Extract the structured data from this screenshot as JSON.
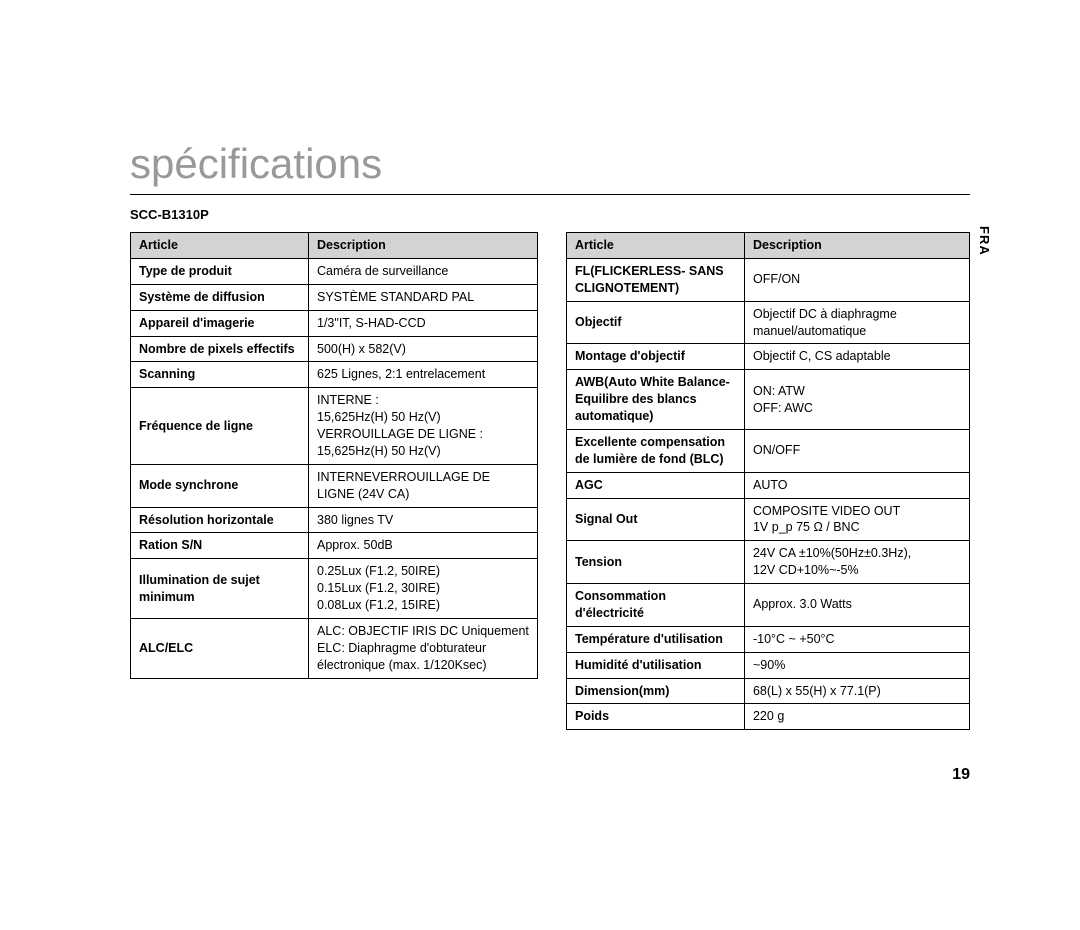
{
  "title": "spécifications",
  "model": "SCC-B1310P",
  "side_tab": "FRA",
  "page_number": "19",
  "headers": {
    "col1": "Article",
    "col2": "Description"
  },
  "left_table": [
    {
      "article": "Type de produit",
      "desc": "Caméra de surveillance"
    },
    {
      "article": "Système de diffusion",
      "desc": "SYSTÈME STANDARD PAL"
    },
    {
      "article": "Appareil d'imagerie",
      "desc": "1/3\"IT, S-HAD-CCD"
    },
    {
      "article": "Nombre de pixels effectifs",
      "desc": "500(H) x 582(V)"
    },
    {
      "article": "Scanning",
      "desc": "625 Lignes, 2:1 entrelacement"
    },
    {
      "article": "Fréquence de ligne",
      "desc": "INTERNE :\n15,625Hz(H) 50 Hz(V)\nVERROUILLAGE DE LIGNE :\n15,625Hz(H) 50 Hz(V)"
    },
    {
      "article": "Mode synchrone",
      "desc": "INTERNEVERROUILLAGE DE LIGNE (24V CA)"
    },
    {
      "article": "Résolution horizontale",
      "desc": "380 lignes TV"
    },
    {
      "article": "Ration S/N",
      "desc": "Approx. 50dB"
    },
    {
      "article": "Illumination de sujet minimum",
      "desc": "0.25Lux (F1.2, 50IRE)\n0.15Lux (F1.2, 30IRE)\n0.08Lux (F1.2, 15IRE)"
    },
    {
      "article": "ALC/ELC",
      "desc": "ALC: OBJECTIF IRIS DC Uniquement\nELC: Diaphragme d'obturateur\nélectronique (max. 1/120Ksec)"
    }
  ],
  "right_table": [
    {
      "article": "FL(FLICKERLESS- SANS CLIGNOTEMENT)",
      "desc": "OFF/ON"
    },
    {
      "article": "Objectif",
      "desc": "Objectif DC à diaphragme manuel/automatique"
    },
    {
      "article": "Montage d'objectif",
      "desc": "Objectif C, CS adaptable"
    },
    {
      "article": "AWB(Auto White Balance- Equilibre des blancs automatique)",
      "desc": "ON: ATW\nOFF: AWC"
    },
    {
      "article": "Excellente compensation de lumière de fond (BLC)",
      "desc": "ON/OFF"
    },
    {
      "article": "AGC",
      "desc": "AUTO"
    },
    {
      "article": "Signal Out",
      "desc": "COMPOSITE VIDEO OUT\n1V p_p 75 Ω / BNC"
    },
    {
      "article": "Tension",
      "desc": "24V CA ±10%(50Hz±0.3Hz),\n12V CD+10%~-5%"
    },
    {
      "article": "Consommation d'électricité",
      "desc": "Approx. 3.0 Watts"
    },
    {
      "article": "Température d'utilisation",
      "desc": "-10°C ~ +50°C"
    },
    {
      "article": "Humidité d'utilisation",
      "desc": "~90%"
    },
    {
      "article": "Dimension(mm)",
      "desc": "68(L) x 55(H) x 77.1(P)"
    },
    {
      "article": "Poids",
      "desc": "220 g"
    }
  ],
  "colors": {
    "title_color": "#999999",
    "text_color": "#000000",
    "header_bg": "#d3d3d3",
    "border": "#000000",
    "background": "#ffffff"
  }
}
